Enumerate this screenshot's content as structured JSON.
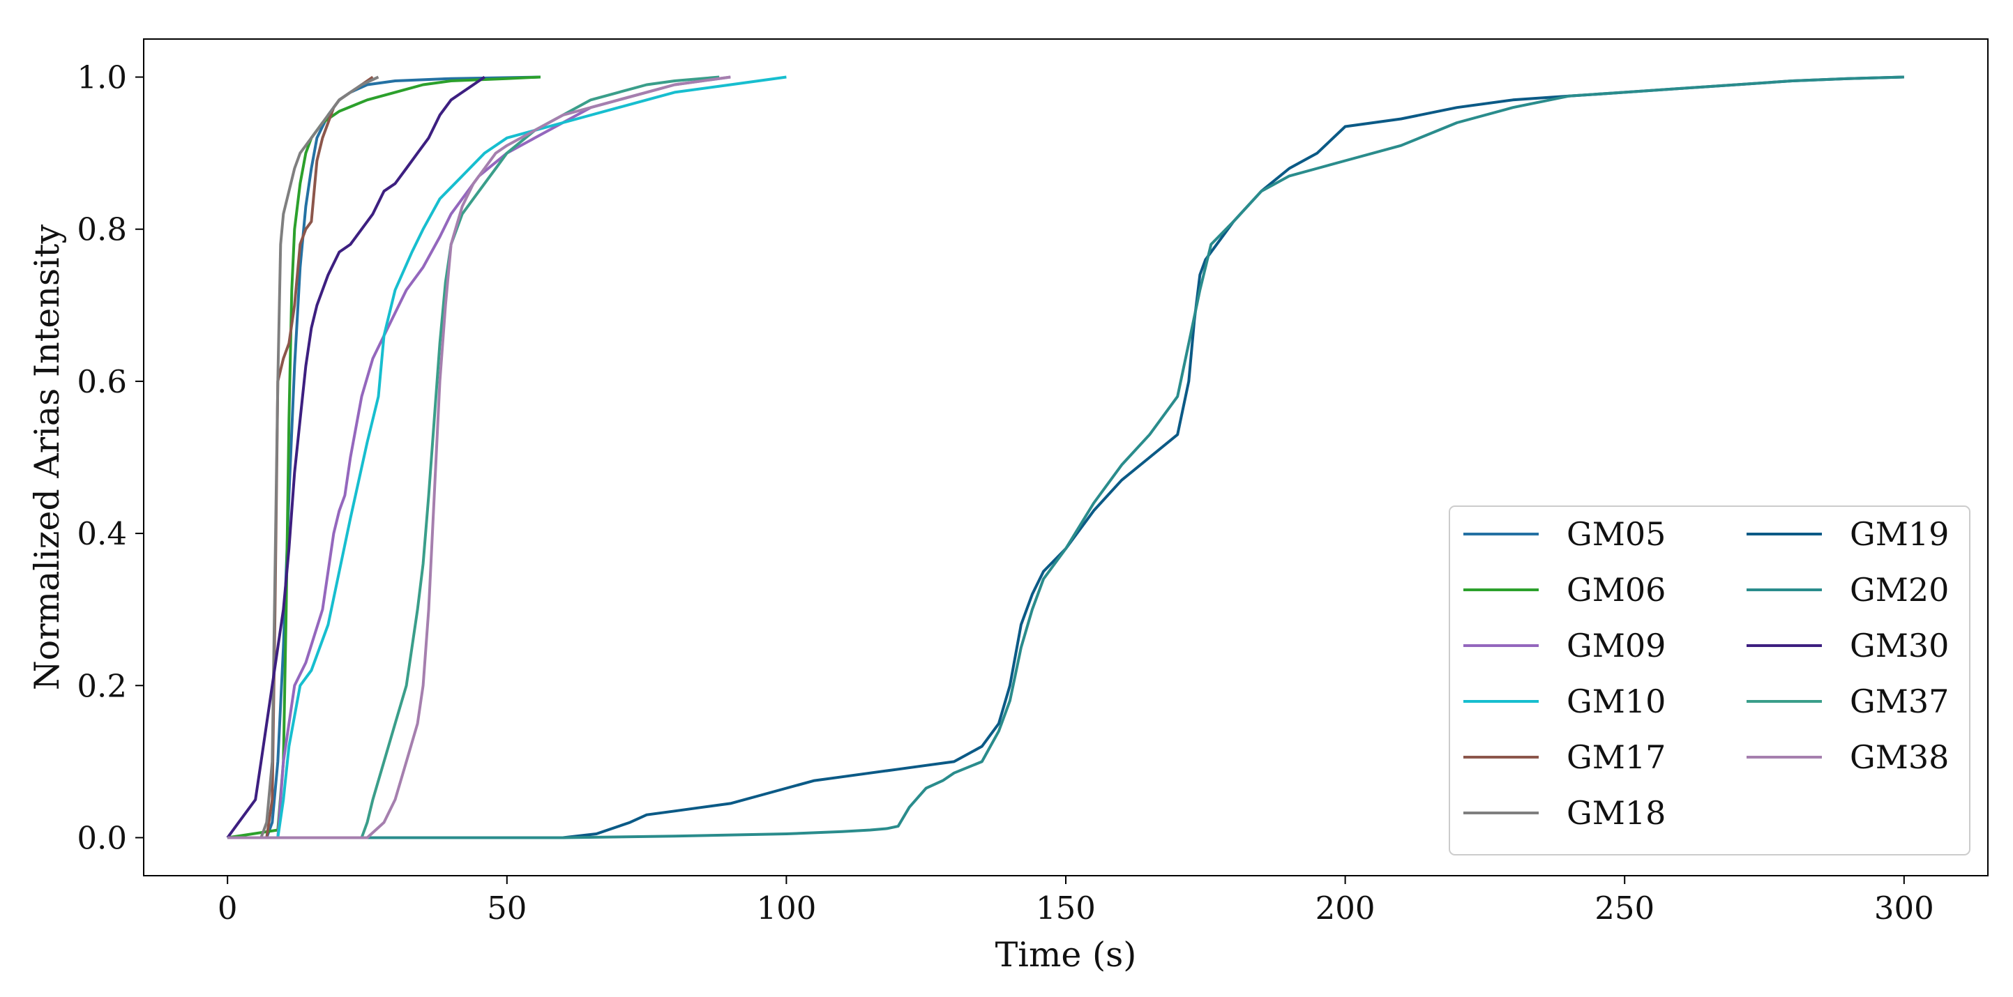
{
  "chart_data": {
    "type": "line",
    "title": "",
    "xlabel": "Time (s)",
    "ylabel": "Normalized Arias Intensity",
    "xlim": [
      -15,
      315
    ],
    "ylim": [
      -0.05,
      1.05
    ],
    "xticks": [
      0,
      50,
      100,
      150,
      200,
      250,
      300
    ],
    "xtick_labels": [
      "0",
      "50",
      "100",
      "150",
      "200",
      "250",
      "300"
    ],
    "yticks": [
      0.0,
      0.2,
      0.4,
      0.6,
      0.8,
      1.0
    ],
    "ytick_labels": [
      "0.0",
      "0.2",
      "0.4",
      "0.6",
      "0.8",
      "1.0"
    ],
    "grid": false,
    "legend_position": "lower-right",
    "legend_columns": 2,
    "series": [
      {
        "name": "GM05",
        "color": "#2471a3",
        "x": [
          0,
          7,
          8,
          9,
          10,
          11,
          12,
          13,
          14,
          15,
          16,
          18,
          20,
          22,
          25,
          30,
          40,
          56
        ],
        "y": [
          0,
          0,
          0.02,
          0.1,
          0.25,
          0.45,
          0.62,
          0.75,
          0.83,
          0.88,
          0.92,
          0.95,
          0.97,
          0.98,
          0.99,
          0.995,
          0.998,
          1.0
        ]
      },
      {
        "name": "GM06",
        "color": "#2ca02c",
        "x": [
          0,
          9,
          10,
          10.5,
          11,
          11.5,
          12,
          13,
          14,
          15,
          17,
          20,
          25,
          30,
          35,
          40,
          50,
          56
        ],
        "y": [
          0,
          0.01,
          0.1,
          0.3,
          0.55,
          0.72,
          0.8,
          0.86,
          0.9,
          0.92,
          0.94,
          0.955,
          0.97,
          0.98,
          0.99,
          0.995,
          0.998,
          1.0
        ]
      },
      {
        "name": "GM09",
        "color": "#9467bd",
        "x": [
          0,
          9,
          10,
          12,
          14,
          17,
          19,
          20,
          21,
          22,
          24,
          26,
          28,
          30,
          32,
          35,
          38,
          40,
          45,
          50,
          55,
          60,
          65,
          70,
          80,
          90
        ],
        "y": [
          0,
          0,
          0.1,
          0.2,
          0.23,
          0.3,
          0.4,
          0.43,
          0.45,
          0.5,
          0.58,
          0.63,
          0.66,
          0.69,
          0.72,
          0.75,
          0.79,
          0.82,
          0.87,
          0.9,
          0.92,
          0.94,
          0.96,
          0.97,
          0.99,
          1.0
        ]
      },
      {
        "name": "GM10",
        "color": "#17becf",
        "x": [
          0,
          9,
          10,
          11,
          13,
          15,
          18,
          20,
          22,
          25,
          27,
          28,
          30,
          33,
          35,
          38,
          42,
          46,
          50,
          55,
          60,
          70,
          80,
          90,
          100
        ],
        "y": [
          0,
          0,
          0.05,
          0.12,
          0.2,
          0.22,
          0.28,
          0.35,
          0.42,
          0.52,
          0.58,
          0.66,
          0.72,
          0.77,
          0.8,
          0.84,
          0.87,
          0.9,
          0.92,
          0.93,
          0.94,
          0.96,
          0.98,
          0.99,
          1.0
        ]
      },
      {
        "name": "GM17",
        "color": "#8c564b",
        "x": [
          0,
          7,
          8,
          8.5,
          9,
          10,
          11,
          12,
          13,
          14,
          15,
          16,
          17,
          18,
          19,
          20,
          22,
          24,
          26
        ],
        "y": [
          0,
          0,
          0.05,
          0.3,
          0.6,
          0.63,
          0.65,
          0.7,
          0.78,
          0.8,
          0.81,
          0.89,
          0.92,
          0.94,
          0.96,
          0.97,
          0.98,
          0.99,
          1.0
        ]
      },
      {
        "name": "GM18",
        "color": "#7f7f7f",
        "x": [
          0,
          6,
          7,
          8,
          8.5,
          9,
          9.5,
          10,
          11,
          12,
          13,
          14,
          15,
          16,
          18,
          20,
          22,
          24,
          27
        ],
        "y": [
          0,
          0,
          0.02,
          0.1,
          0.35,
          0.6,
          0.78,
          0.82,
          0.85,
          0.88,
          0.9,
          0.91,
          0.92,
          0.93,
          0.95,
          0.97,
          0.98,
          0.99,
          1.0
        ]
      },
      {
        "name": "GM19",
        "color": "#0b5a86",
        "x": [
          0,
          60,
          66,
          70,
          72,
          75,
          80,
          85,
          90,
          95,
          100,
          105,
          110,
          115,
          120,
          125,
          130,
          135,
          138,
          140,
          142,
          144,
          146,
          150,
          155,
          160,
          165,
          170,
          172,
          173,
          174,
          175,
          180,
          185,
          190,
          195,
          200,
          210,
          220,
          230,
          240,
          250,
          260,
          270,
          280,
          290,
          300
        ],
        "y": [
          0,
          0,
          0.005,
          0.015,
          0.02,
          0.03,
          0.035,
          0.04,
          0.045,
          0.055,
          0.065,
          0.075,
          0.08,
          0.085,
          0.09,
          0.095,
          0.1,
          0.12,
          0.15,
          0.2,
          0.28,
          0.32,
          0.35,
          0.38,
          0.43,
          0.47,
          0.5,
          0.53,
          0.6,
          0.68,
          0.74,
          0.76,
          0.81,
          0.85,
          0.88,
          0.9,
          0.935,
          0.945,
          0.96,
          0.97,
          0.975,
          0.98,
          0.985,
          0.99,
          0.995,
          0.998,
          1.0
        ]
      },
      {
        "name": "GM20",
        "color": "#2a8c8c",
        "x": [
          0,
          60,
          80,
          100,
          110,
          115,
          118,
          120,
          122,
          125,
          128,
          130,
          135,
          138,
          140,
          142,
          144,
          146,
          150,
          155,
          160,
          165,
          170,
          172,
          174,
          176,
          180,
          185,
          190,
          195,
          200,
          210,
          220,
          230,
          240,
          250,
          260,
          270,
          280,
          290,
          300
        ],
        "y": [
          0,
          0,
          0.002,
          0.005,
          0.008,
          0.01,
          0.012,
          0.015,
          0.04,
          0.065,
          0.075,
          0.085,
          0.1,
          0.14,
          0.18,
          0.25,
          0.3,
          0.34,
          0.38,
          0.44,
          0.49,
          0.53,
          0.58,
          0.65,
          0.72,
          0.78,
          0.81,
          0.85,
          0.87,
          0.88,
          0.89,
          0.91,
          0.94,
          0.96,
          0.975,
          0.98,
          0.985,
          0.99,
          0.995,
          0.998,
          1.0
        ]
      },
      {
        "name": "GM30",
        "color": "#3d1f80",
        "x": [
          0,
          1,
          2,
          3,
          4,
          5,
          6,
          7,
          8,
          9,
          10,
          11,
          12,
          13,
          14,
          15,
          16,
          18,
          20,
          22,
          24,
          26,
          28,
          30,
          32,
          34,
          36,
          38,
          40,
          42,
          44,
          46
        ],
        "y": [
          0,
          0.01,
          0.02,
          0.03,
          0.04,
          0.05,
          0.1,
          0.15,
          0.2,
          0.25,
          0.3,
          0.38,
          0.48,
          0.55,
          0.62,
          0.67,
          0.7,
          0.74,
          0.77,
          0.78,
          0.8,
          0.82,
          0.85,
          0.86,
          0.88,
          0.9,
          0.92,
          0.95,
          0.97,
          0.98,
          0.99,
          1.0
        ]
      },
      {
        "name": "GM37",
        "color": "#3a9e8a",
        "x": [
          0,
          24,
          25,
          26,
          28,
          30,
          32,
          33,
          34,
          35,
          36,
          37,
          38,
          39,
          40,
          42,
          44,
          46,
          48,
          50,
          55,
          60,
          65,
          70,
          75,
          80,
          88
        ],
        "y": [
          0,
          0,
          0.02,
          0.05,
          0.1,
          0.15,
          0.2,
          0.25,
          0.3,
          0.36,
          0.45,
          0.55,
          0.65,
          0.73,
          0.78,
          0.82,
          0.84,
          0.86,
          0.88,
          0.9,
          0.93,
          0.95,
          0.97,
          0.98,
          0.99,
          0.995,
          1.0
        ]
      },
      {
        "name": "GM38",
        "color": "#a57fae",
        "x": [
          0,
          25,
          28,
          30,
          32,
          34,
          35,
          36,
          37,
          38,
          39,
          40,
          42,
          44,
          46,
          48,
          50,
          55,
          60,
          65,
          70,
          75,
          80,
          85,
          90
        ],
        "y": [
          0,
          0,
          0.02,
          0.05,
          0.1,
          0.15,
          0.2,
          0.3,
          0.45,
          0.6,
          0.7,
          0.78,
          0.83,
          0.86,
          0.88,
          0.9,
          0.91,
          0.93,
          0.95,
          0.96,
          0.97,
          0.98,
          0.99,
          0.995,
          1.0
        ]
      }
    ]
  }
}
